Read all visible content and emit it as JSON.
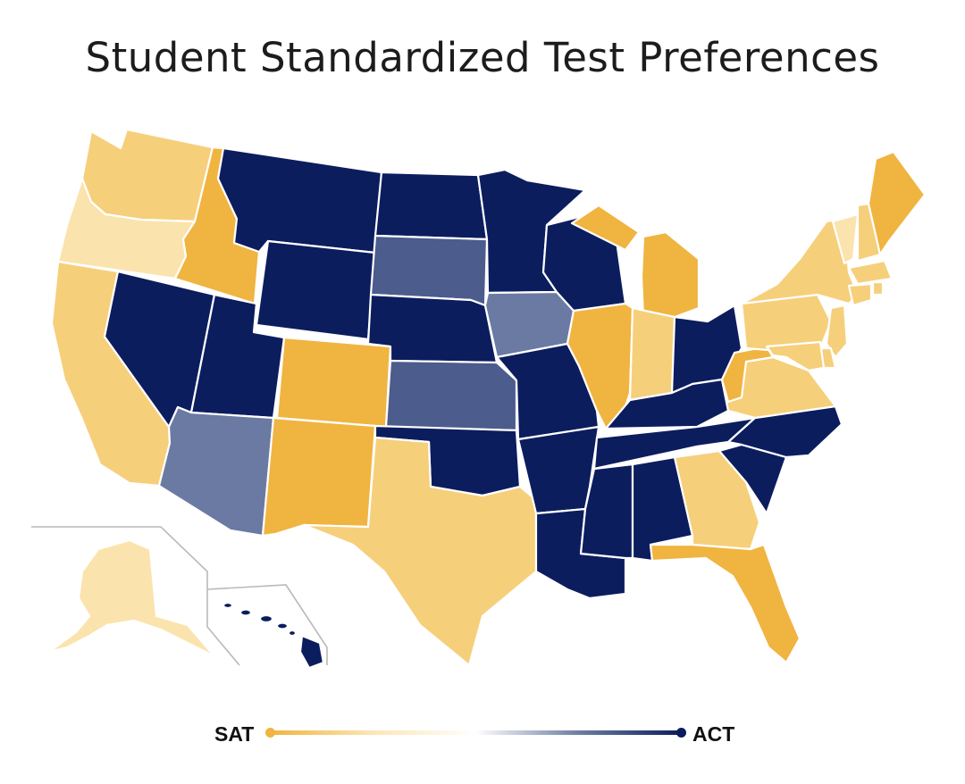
{
  "title": "Student Standardized Test Preferences",
  "legend": {
    "left_label": "SAT",
    "right_label": "ACT",
    "colors": [
      "#f0b440",
      "#fbe6b5",
      "#ffffff",
      "#6e7ea3",
      "#0c1d5e"
    ]
  },
  "palette": {
    "sat_strong": "#f0b440",
    "sat_medium": "#f6cf7b",
    "sat_light": "#fbe3ad",
    "act_light": "#6b7aa3",
    "act_medium": "#4c5c8c",
    "act_strong": "#0c1d5e"
  },
  "states": {
    "WA": "sat_medium",
    "OR": "sat_light",
    "CA": "sat_medium",
    "ID": "sat_strong",
    "NV": "act_strong",
    "UT": "act_strong",
    "AZ": "act_light",
    "MT": "act_strong",
    "WY": "act_strong",
    "CO": "sat_strong",
    "NM": "sat_strong",
    "ND": "act_strong",
    "SD": "act_medium",
    "NE": "act_strong",
    "KS": "act_medium",
    "OK": "act_strong",
    "TX": "sat_medium",
    "MN": "act_strong",
    "IA": "act_light",
    "MO": "act_strong",
    "AR": "act_strong",
    "LA": "act_strong",
    "WI": "act_strong",
    "IL": "sat_strong",
    "MI": "sat_strong",
    "IN": "sat_medium",
    "OH": "act_strong",
    "KY": "act_strong",
    "TN": "act_strong",
    "MS": "act_strong",
    "AL": "act_strong",
    "GA": "sat_medium",
    "FL": "sat_strong",
    "SC": "act_strong",
    "NC": "act_strong",
    "VA": "sat_medium",
    "WV": "sat_strong",
    "PA": "sat_medium",
    "NY": "sat_medium",
    "VT": "sat_light",
    "NH": "sat_medium",
    "ME": "sat_strong",
    "MA": "sat_medium",
    "CT": "sat_medium",
    "RI": "sat_medium",
    "NJ": "sat_medium",
    "DE": "sat_medium",
    "MD": "sat_medium",
    "AK": "sat_light",
    "HI": "act_strong"
  }
}
